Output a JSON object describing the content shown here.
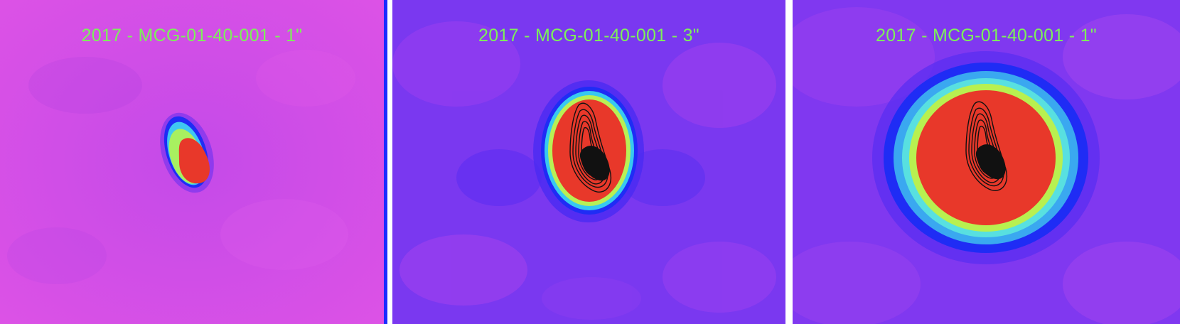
{
  "panels": [
    {
      "title": "2017 - MCG-01-40-001 - 1\"",
      "colormap": "magenta-background",
      "contours": false
    },
    {
      "title": "2017 - MCG-01-40-001 - 3\"",
      "colormap": "violet-background",
      "contours": true
    },
    {
      "title": "2017 - MCG-01-40-001 - 1\"",
      "colormap": "violet-background",
      "contours": true
    }
  ],
  "colors": {
    "title": "#7df05a",
    "core": "#e8382a",
    "contour": "#111111",
    "bg_magenta": "#d84de6",
    "bg_violet": "#7a38f0"
  }
}
